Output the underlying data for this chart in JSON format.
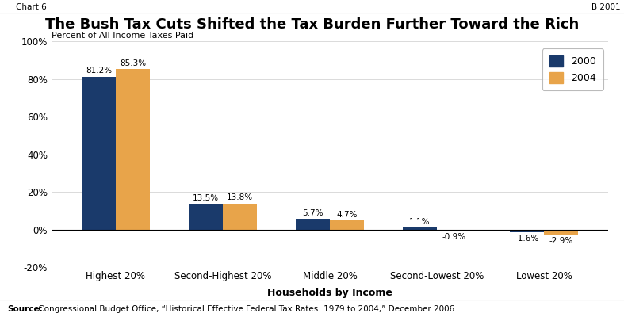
{
  "title": "The Bush Tax Cuts Shifted the Tax Burden Further Toward the Rich",
  "ylabel": "Percent of All Income Taxes Paid",
  "xlabel": "Households by Income",
  "categories": [
    "Highest 20%",
    "Second-Highest 20%",
    "Middle 20%",
    "Second-Lowest 20%",
    "Lowest 20%"
  ],
  "values_2000": [
    81.2,
    13.5,
    5.7,
    1.1,
    -1.6
  ],
  "values_2004": [
    85.3,
    13.8,
    4.7,
    -0.9,
    -2.9
  ],
  "labels_2000": [
    "81.2%",
    "13.5%",
    "5.7%",
    "1.1%",
    "-1.6%"
  ],
  "labels_2004": [
    "85.3%",
    "13.8%",
    "4.7%",
    "-0.9%",
    "-2.9%"
  ],
  "color_2000": "#1a3a6b",
  "color_2004": "#e8a44a",
  "ylim": [
    -20,
    100
  ],
  "yticks": [
    -20,
    0,
    20,
    40,
    60,
    80,
    100
  ],
  "ytick_labels": [
    "-20%",
    "0%",
    "20%",
    "40%",
    "60%",
    "80%",
    "100%"
  ],
  "legend_labels": [
    "2000",
    "2004"
  ],
  "header_left": "Chart 6",
  "header_right": "B 2001",
  "source_bold": "Source:",
  "source_text": " Congressional Budget Office, “Historical Effective Federal Tax Rates: 1979 to 2004,” December 2006.",
  "background_color": "#ffffff",
  "header_bg": "#d8d8d8",
  "bar_width": 0.32
}
